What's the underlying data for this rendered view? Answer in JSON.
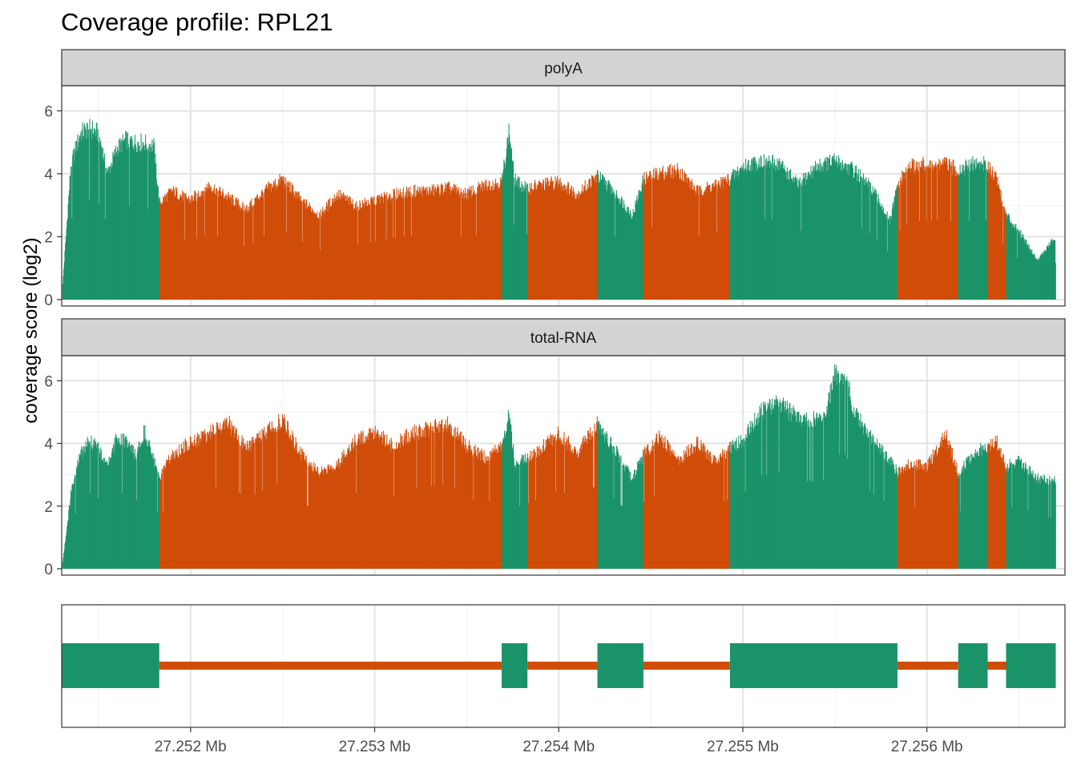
{
  "chart_data": {
    "type": "area",
    "title": "Coverage profile: RPL21",
    "ylabel": "coverage score (log2)",
    "xlabel": "",
    "xlim": [
      27251300,
      27256750
    ],
    "ylim": [
      0,
      6.8
    ],
    "y_ticks": [
      0,
      2,
      4,
      6
    ],
    "x_ticks": [
      {
        "value": 27252000,
        "label": "27.252 Mb"
      },
      {
        "value": 27253000,
        "label": "27.253 Mb"
      },
      {
        "value": 27254000,
        "label": "27.254 Mb"
      },
      {
        "value": 27255000,
        "label": "27.255 Mb"
      },
      {
        "value": 27256000,
        "label": "27.256 Mb"
      }
    ],
    "grid": true,
    "colors": {
      "exon": "#1b9368",
      "intron": "#d04d08",
      "strip": "#d3d3d3"
    },
    "segments": [
      {
        "start": 27251300,
        "end": 27251830,
        "type": "exon"
      },
      {
        "start": 27251830,
        "end": 27253690,
        "type": "intron"
      },
      {
        "start": 27253690,
        "end": 27253830,
        "type": "exon"
      },
      {
        "start": 27253830,
        "end": 27254210,
        "type": "intron"
      },
      {
        "start": 27254210,
        "end": 27254460,
        "type": "exon"
      },
      {
        "start": 27254460,
        "end": 27254930,
        "type": "intron"
      },
      {
        "start": 27254930,
        "end": 27255840,
        "type": "exon"
      },
      {
        "start": 27255840,
        "end": 27256170,
        "type": "intron"
      },
      {
        "start": 27256170,
        "end": 27256330,
        "type": "exon"
      },
      {
        "start": 27256330,
        "end": 27256430,
        "type": "intron"
      },
      {
        "start": 27256430,
        "end": 27256700,
        "type": "exon"
      }
    ],
    "series": [
      {
        "name": "polyA",
        "x": [
          27251300,
          27251350,
          27251400,
          27251450,
          27251500,
          27251550,
          27251600,
          27251650,
          27251700,
          27251750,
          27251800,
          27251830,
          27251900,
          27252000,
          27252100,
          27252200,
          27252300,
          27252400,
          27252500,
          27252600,
          27252700,
          27252800,
          27252900,
          27253000,
          27253100,
          27253200,
          27253300,
          27253400,
          27253500,
          27253600,
          27253690,
          27253730,
          27253760,
          27253790,
          27253830,
          27253900,
          27254000,
          27254100,
          27254210,
          27254300,
          27254400,
          27254460,
          27254550,
          27254650,
          27254750,
          27254850,
          27254930,
          27255000,
          27255100,
          27255200,
          27255300,
          27255400,
          27255500,
          27255600,
          27255700,
          27255800,
          27255840,
          27255900,
          27256000,
          27256100,
          27256170,
          27256250,
          27256330,
          27256380,
          27256430,
          27256500,
          27256600,
          27256700
        ],
        "y": [
          0.1,
          4.5,
          5.5,
          5.7,
          5.5,
          4.2,
          5.0,
          5.3,
          5.2,
          5.2,
          5.1,
          3.2,
          3.6,
          3.3,
          3.8,
          3.4,
          3.0,
          3.6,
          4.0,
          3.3,
          2.8,
          3.5,
          3.1,
          3.3,
          3.5,
          3.6,
          3.6,
          3.7,
          3.5,
          3.8,
          3.9,
          5.6,
          4.0,
          3.8,
          3.7,
          3.8,
          3.9,
          3.5,
          4.1,
          3.6,
          2.8,
          4.0,
          4.2,
          4.3,
          3.6,
          3.8,
          4.0,
          4.4,
          4.6,
          4.5,
          3.8,
          4.4,
          4.6,
          4.3,
          3.7,
          2.6,
          3.8,
          4.4,
          4.5,
          4.5,
          4.3,
          4.5,
          4.5,
          4.0,
          2.8,
          2.3,
          1.3,
          2.1
        ]
      },
      {
        "name": "total-RNA",
        "x": [
          27251300,
          27251350,
          27251400,
          27251450,
          27251500,
          27251550,
          27251600,
          27251650,
          27251700,
          27251750,
          27251830,
          27251900,
          27252000,
          27252100,
          27252200,
          27252300,
          27252400,
          27252500,
          27252600,
          27252700,
          27252800,
          27252900,
          27253000,
          27253100,
          27253200,
          27253300,
          27253400,
          27253500,
          27253600,
          27253690,
          27253730,
          27253760,
          27253830,
          27253900,
          27254000,
          27254100,
          27254210,
          27254300,
          27254400,
          27254460,
          27254550,
          27254650,
          27254750,
          27254850,
          27254930,
          27255000,
          27255100,
          27255200,
          27255300,
          27255400,
          27255450,
          27255500,
          27255560,
          27255600,
          27255700,
          27255800,
          27255840,
          27255900,
          27256000,
          27256100,
          27256170,
          27256250,
          27256330,
          27256380,
          27256430,
          27256500,
          27256600,
          27256700
        ],
        "y": [
          0.0,
          2.5,
          3.8,
          4.3,
          4.0,
          3.5,
          4.4,
          4.2,
          3.8,
          4.6,
          3.0,
          3.8,
          4.2,
          4.5,
          4.9,
          4.0,
          4.5,
          5.0,
          3.8,
          3.2,
          3.5,
          4.3,
          4.6,
          4.1,
          4.5,
          4.7,
          4.8,
          4.1,
          3.7,
          4.2,
          5.2,
          3.5,
          3.7,
          4.0,
          4.5,
          3.9,
          4.8,
          4.0,
          3.0,
          3.8,
          4.4,
          3.6,
          4.2,
          3.6,
          4.0,
          4.3,
          5.3,
          5.5,
          5.0,
          5.0,
          5.1,
          6.5,
          6.5,
          5.3,
          4.3,
          3.6,
          3.2,
          3.5,
          3.4,
          4.5,
          3.2,
          3.8,
          4.1,
          4.2,
          3.4,
          3.6,
          3.0,
          2.9
        ]
      }
    ]
  }
}
